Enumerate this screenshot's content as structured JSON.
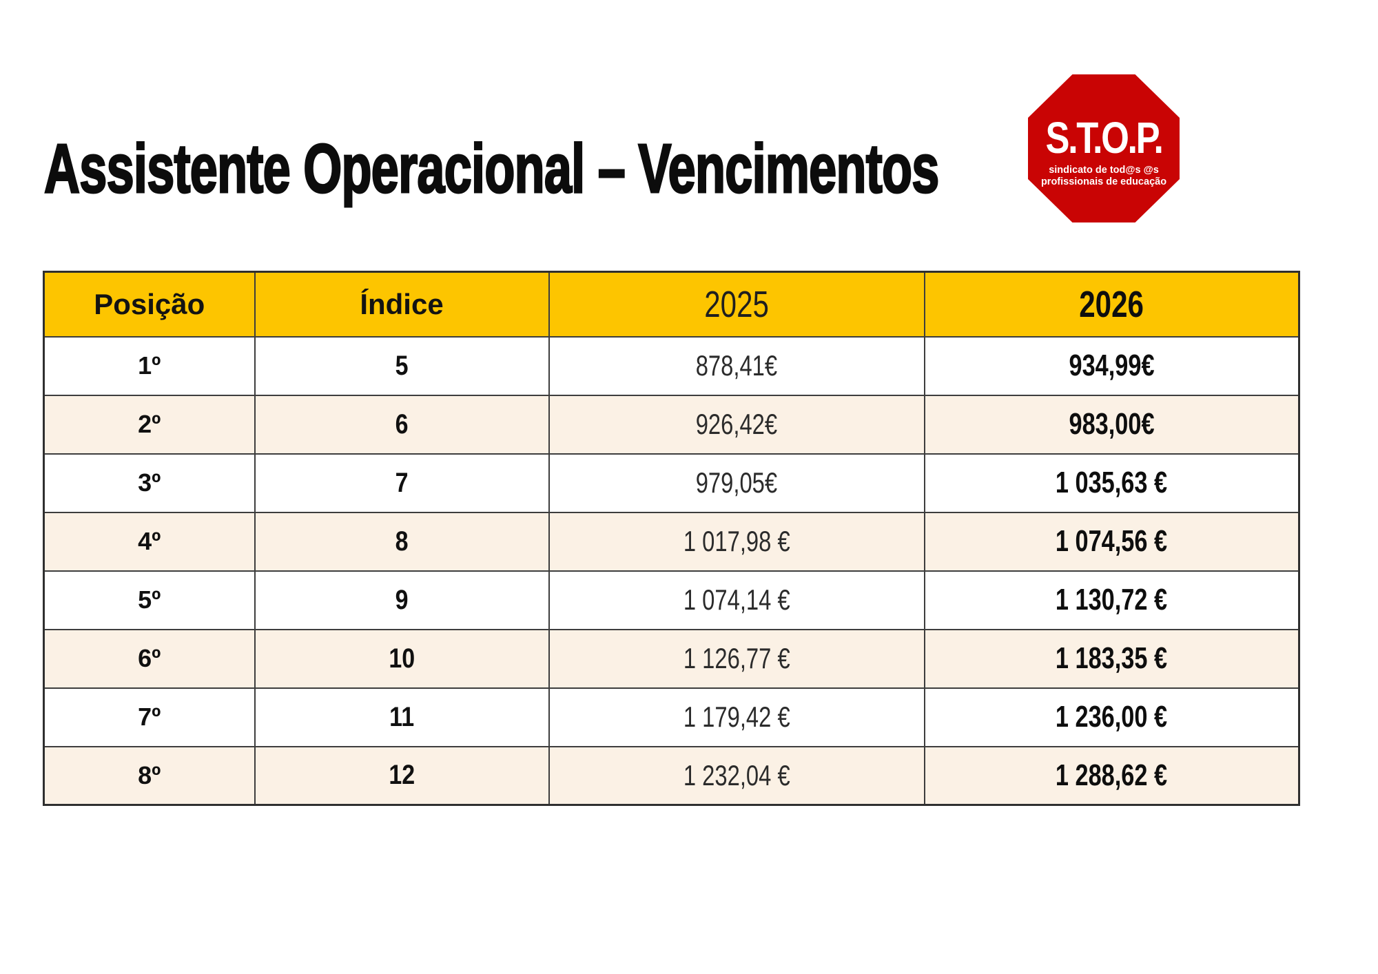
{
  "page": {
    "title": "Assistente Operacional – Vencimentos"
  },
  "logo": {
    "acronym": "S.T.O.P.",
    "line1": "sindicato de tod@s @s",
    "line2": "profissionais de educação"
  },
  "table": {
    "headers": [
      "Posição",
      "Índice",
      "2025",
      "2026"
    ],
    "rows": [
      {
        "posicao": "1º",
        "indice": "5",
        "v2025": "878,41€",
        "v2026": "934,99€"
      },
      {
        "posicao": "2º",
        "indice": "6",
        "v2025": "926,42€",
        "v2026": "983,00€"
      },
      {
        "posicao": "3º",
        "indice": "7",
        "v2025": "979,05€",
        "v2026": "1 035,63 €"
      },
      {
        "posicao": "4º",
        "indice": "8",
        "v2025": "1 017,98 €",
        "v2026": "1 074,56 €"
      },
      {
        "posicao": "5º",
        "indice": "9",
        "v2025": "1 074,14 €",
        "v2026": "1 130,72 €"
      },
      {
        "posicao": "6º",
        "indice": "10",
        "v2025": "1 126,77 €",
        "v2026": "1 183,35 €"
      },
      {
        "posicao": "7º",
        "indice": "11",
        "v2025": "1 179,42 €",
        "v2026": "1 236,00 €"
      },
      {
        "posicao": "8º",
        "indice": "12",
        "v2025": "1 232,04 €",
        "v2026": "1 288,62 €"
      }
    ]
  },
  "colors": {
    "header_bg": "#fdc500",
    "row_alt_bg": "#fbf1e5",
    "logo_red": "#c90404",
    "border": "#3d3d3d",
    "title_text": "#0c0c0c"
  }
}
